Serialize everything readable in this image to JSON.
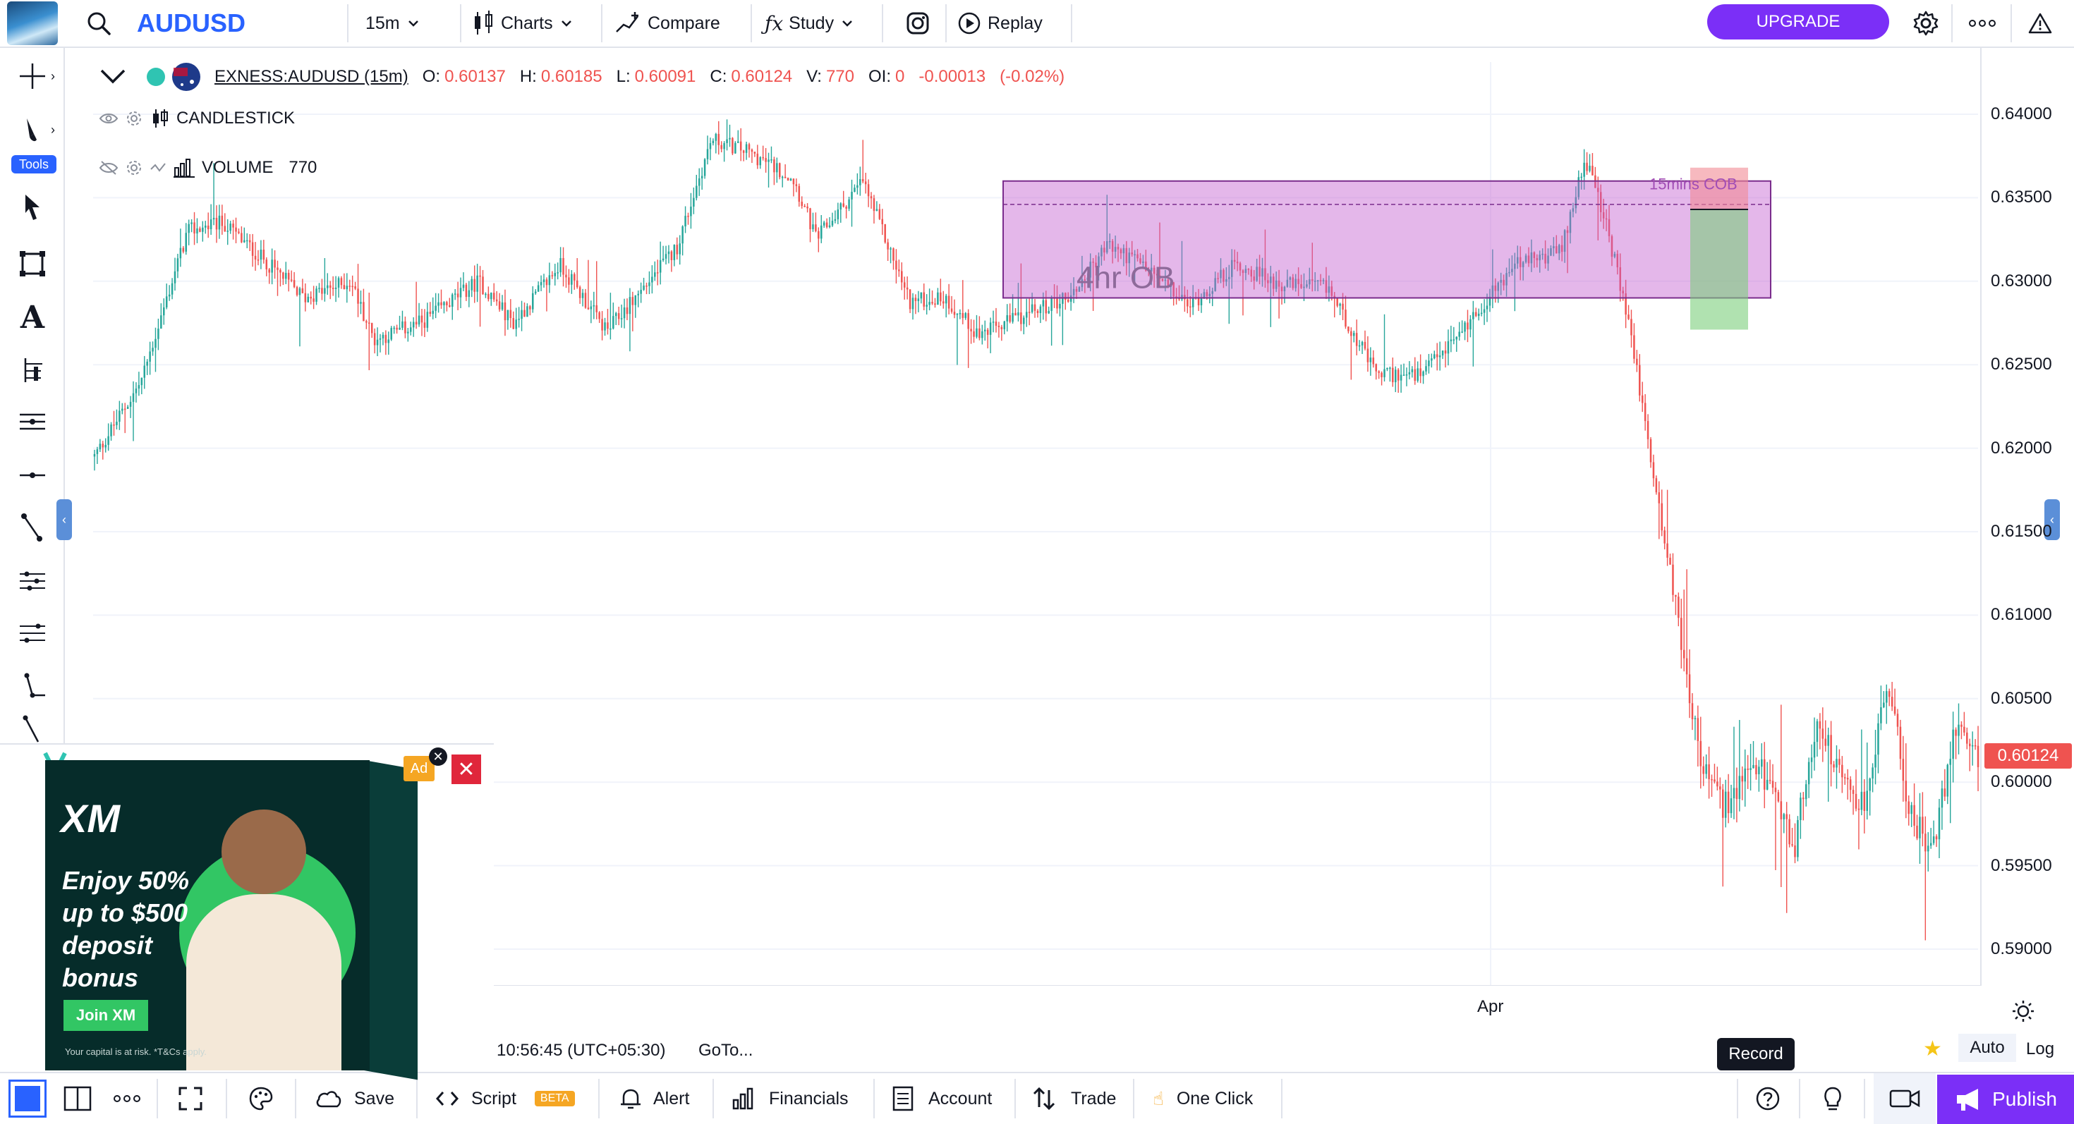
{
  "toolbar": {
    "symbol": "AUDUSD",
    "interval": "15m",
    "charts": "Charts",
    "compare": "Compare",
    "study": "Study",
    "replay": "Replay",
    "upgrade": "UPGRADE",
    "icons": [
      "search-icon",
      "chevron-down-icon",
      "candles-icon",
      "compare-icon",
      "fx-icon",
      "instagram-icon",
      "replay-icon",
      "gear-icon",
      "more-icon",
      "alert-triangle-icon"
    ],
    "accent": "#2962ff",
    "upgrade_color": "#7b2ff7"
  },
  "left_tools": {
    "label": "Tools",
    "items": [
      "crosshair-icon",
      "brush-icon",
      "cursor-icon",
      "rectangle-icon",
      "text-icon",
      "fib-icon",
      "lines-icon",
      "horizontal-line-icon",
      "trendline-icon",
      "pitchfork-icon",
      "pattern-icon",
      "angle-icon",
      "ray-icon"
    ]
  },
  "legend": {
    "symbol": "EXNESS:AUDUSD (15m)",
    "o_label": "O:",
    "o": "0.60137",
    "h_label": "H:",
    "h": "0.60185",
    "l_label": "L:",
    "l": "0.60091",
    "c_label": "C:",
    "c": "0.60124",
    "v_label": "V:",
    "v": "770",
    "oi_label": "OI:",
    "oi": "0",
    "change": "-0.00013",
    "change_pct": "(-0.02%)",
    "study1": "CANDLESTICK",
    "study2": "VOLUME",
    "study2_value": "770"
  },
  "chart_data": {
    "type": "candlestick",
    "title": "",
    "xlabel": "",
    "ylabel": "",
    "x_tick_labels": [
      "Apr"
    ],
    "ylim": [
      0.5875,
      0.6405
    ],
    "y_ticks": [
      "0.64000",
      "0.63500",
      "0.63000",
      "0.62500",
      "0.62000",
      "0.61500",
      "0.61000",
      "0.60500",
      "0.60000",
      "0.59500",
      "0.59000"
    ],
    "last_price": "0.60124",
    "up_color": "#26a69a",
    "down_color": "#ef5350",
    "price_path": [
      [
        0,
        0.6195
      ],
      [
        40,
        0.624
      ],
      [
        80,
        0.633
      ],
      [
        110,
        0.6335
      ],
      [
        150,
        0.631
      ],
      [
        180,
        0.629
      ],
      [
        220,
        0.63
      ],
      [
        240,
        0.6265
      ],
      [
        280,
        0.6275
      ],
      [
        330,
        0.63
      ],
      [
        360,
        0.6275
      ],
      [
        400,
        0.631
      ],
      [
        440,
        0.627
      ],
      [
        500,
        0.632
      ],
      [
        530,
        0.6385
      ],
      [
        560,
        0.6378
      ],
      [
        600,
        0.6362
      ],
      [
        620,
        0.6325
      ],
      [
        660,
        0.636
      ],
      [
        700,
        0.6288
      ],
      [
        730,
        0.629
      ],
      [
        760,
        0.6268
      ],
      [
        800,
        0.628
      ],
      [
        840,
        0.6292
      ],
      [
        870,
        0.6322
      ],
      [
        900,
        0.631
      ],
      [
        940,
        0.6285
      ],
      [
        980,
        0.631
      ],
      [
        1020,
        0.6298
      ],
      [
        1060,
        0.6296
      ],
      [
        1100,
        0.6245
      ],
      [
        1140,
        0.6243
      ],
      [
        1180,
        0.6275
      ],
      [
        1220,
        0.631
      ],
      [
        1260,
        0.6318
      ],
      [
        1280,
        0.6375
      ],
      [
        1300,
        0.633
      ],
      [
        1320,
        0.6268
      ],
      [
        1340,
        0.618
      ],
      [
        1360,
        0.61
      ],
      [
        1380,
        0.601
      ],
      [
        1400,
        0.5985
      ],
      [
        1430,
        0.601
      ],
      [
        1460,
        0.596
      ],
      [
        1480,
        0.604
      ],
      [
        1500,
        0.6
      ],
      [
        1520,
        0.5985
      ],
      [
        1540,
        0.606
      ],
      [
        1560,
        0.598
      ],
      [
        1580,
        0.596
      ],
      [
        1600,
        0.604
      ],
      [
        1618,
        0.6012
      ]
    ],
    "annotations": [
      {
        "label": "4hr OB",
        "type": "rectangle",
        "x0": 0.629,
        "x1": 0.636,
        "color": "#c45fd1"
      },
      {
        "label": "15mins COB",
        "type": "rectangle",
        "x0": 0.6343,
        "x1": 0.6368,
        "color": "#f28b95"
      }
    ]
  },
  "timebar": {
    "time": "10:56:45 (UTC+05:30)",
    "goto": "GoTo...",
    "auto": "Auto",
    "log": "Log"
  },
  "bottombar": {
    "save": "Save",
    "script": "Script",
    "beta": "BETA",
    "alert": "Alert",
    "financials": "Financials",
    "account": "Account",
    "trade": "Trade",
    "one_click": "One Click",
    "publish": "Publish",
    "record_tooltip": "Record"
  },
  "ad": {
    "brand": "XM",
    "headline": "Enjoy 50% up to $500 deposit bonus",
    "cta": "Join XM",
    "disclaimer": "Your capital is at risk. *T&Cs apply.",
    "badge": "Ad"
  }
}
